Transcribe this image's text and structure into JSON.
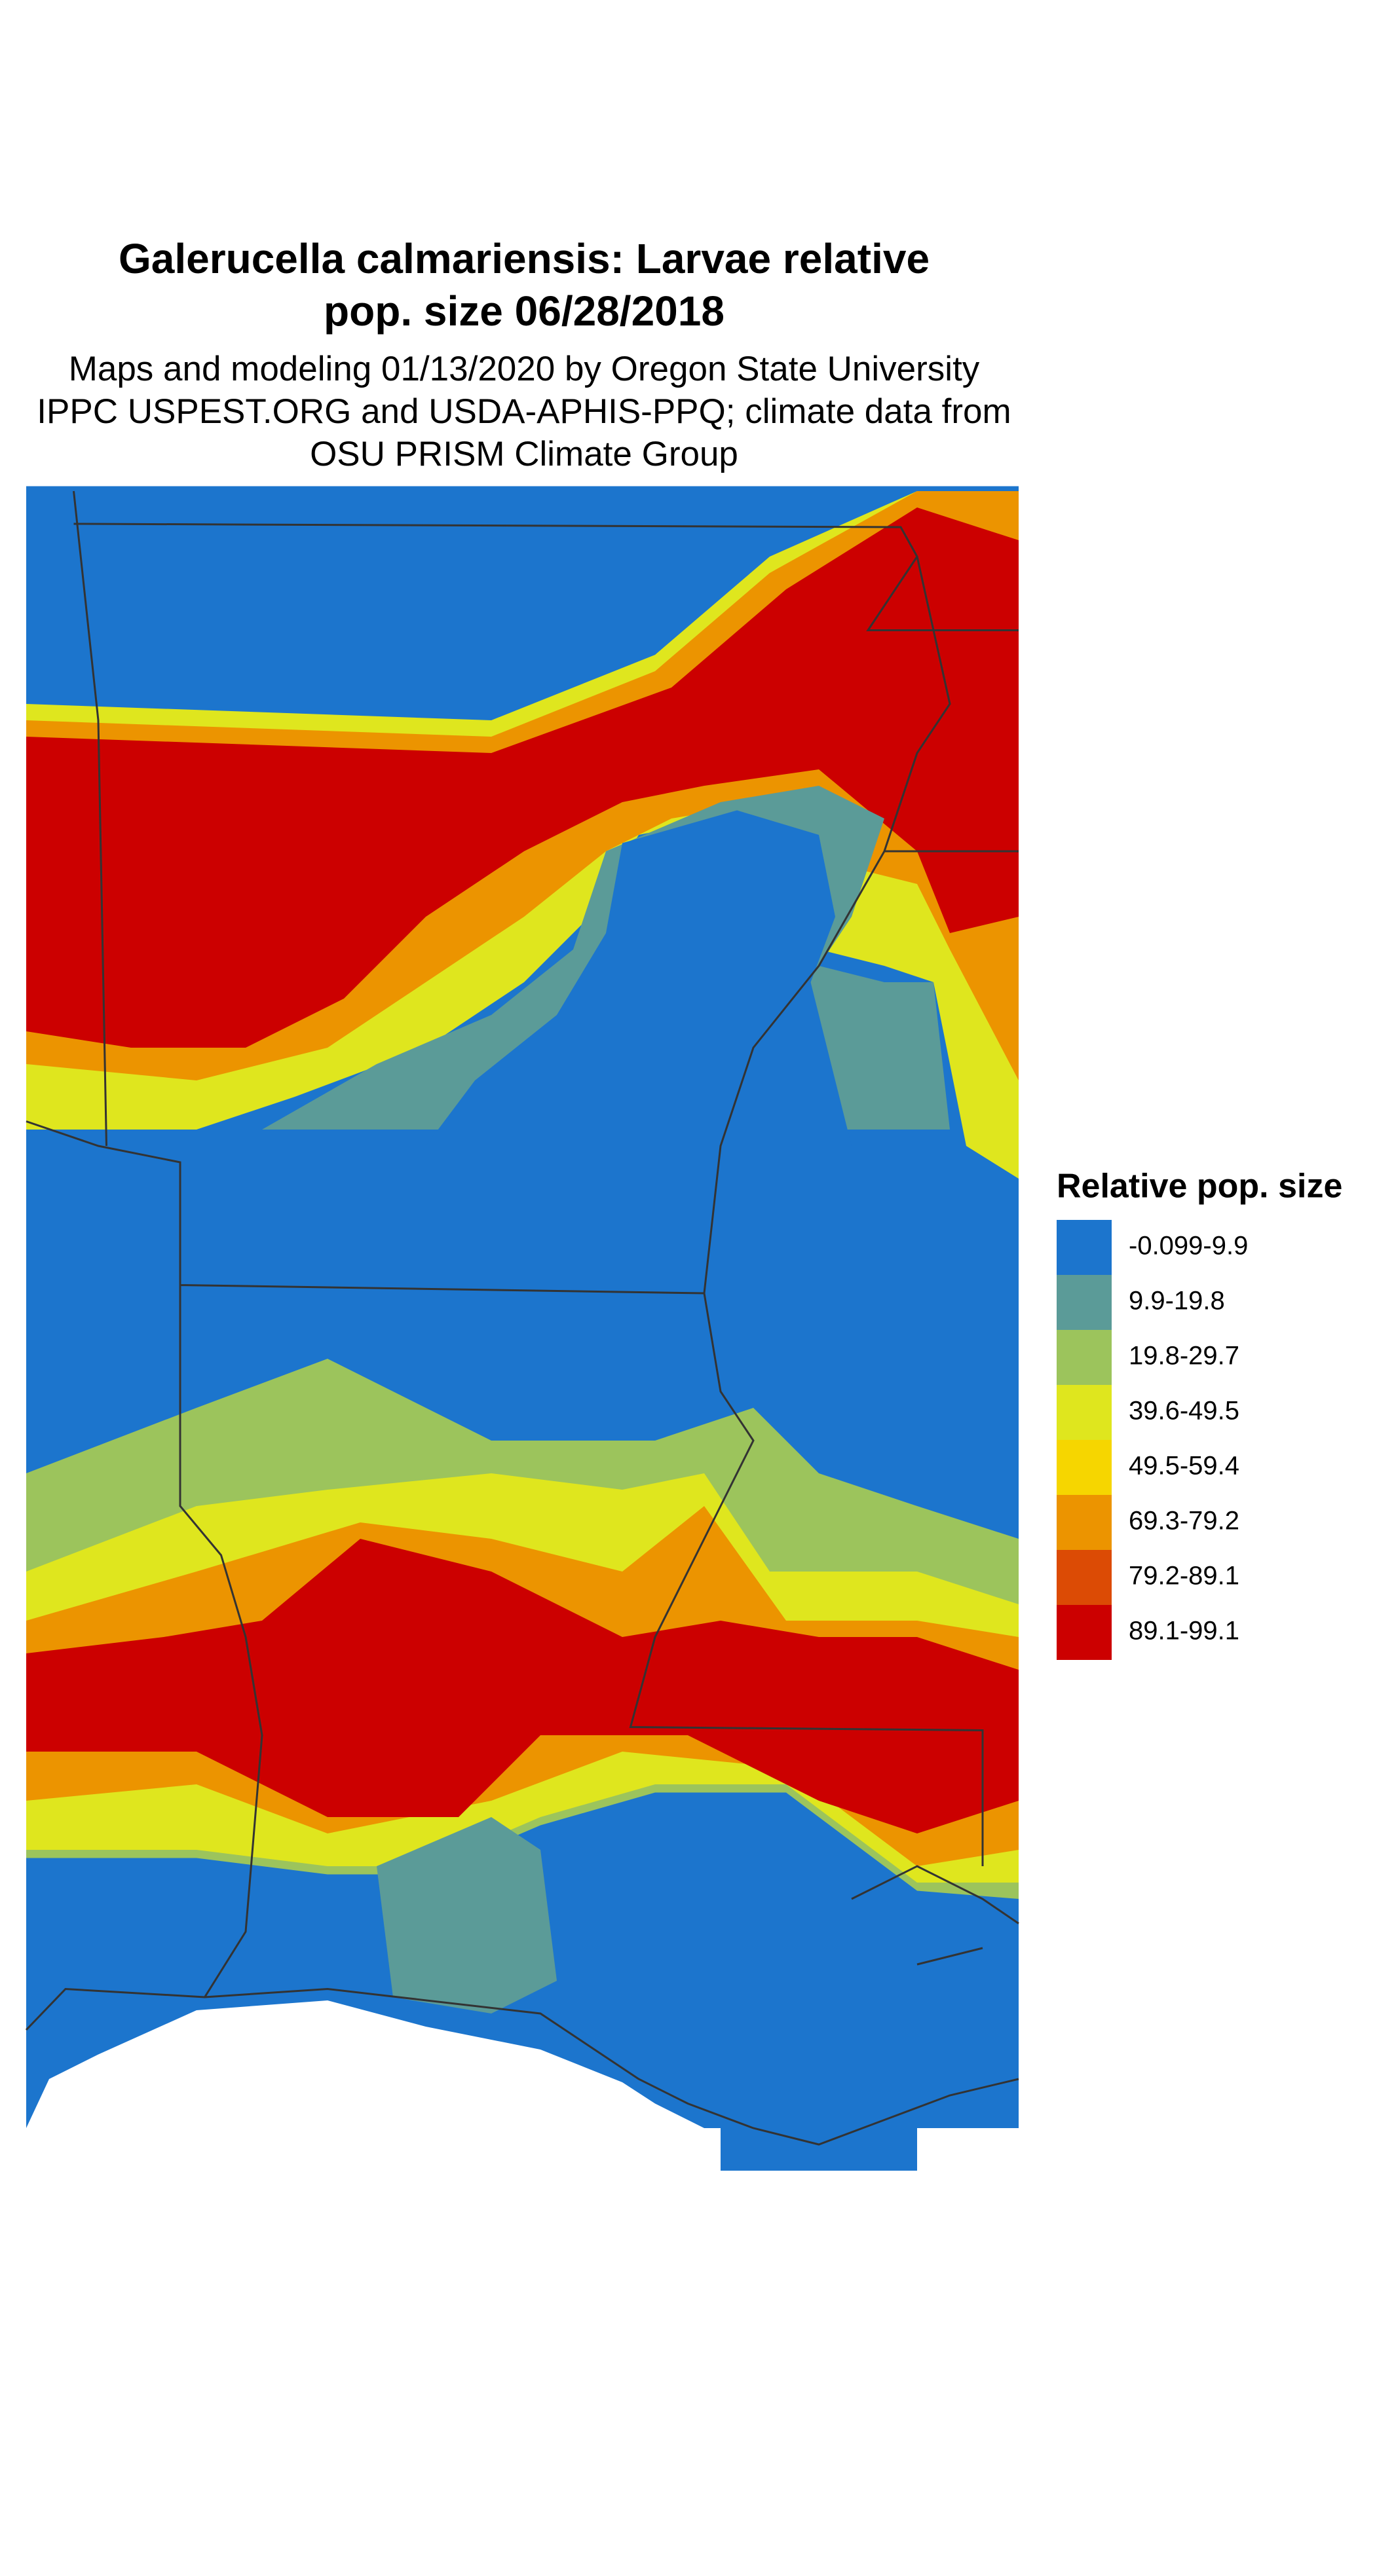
{
  "title": [
    "Galerucella calmariensis: Larvae relative",
    "pop. size 06/28/2018"
  ],
  "subtitle": [
    "Maps and modeling 01/13/2020 by Oregon State University",
    "IPPC USPEST.ORG and USDA-APHIS-PPQ; climate data from",
    "OSU PRISM Climate Group"
  ],
  "legend": {
    "title": "Relative pop. size",
    "items": [
      {
        "label": "-0.099-9.9",
        "color": "#1c75cd"
      },
      {
        "label": "9.9-19.8",
        "color": "#5b9b98"
      },
      {
        "label": "19.8-29.7",
        "color": "#9cc45c"
      },
      {
        "label": "39.6-49.5",
        "color": "#dfe61e"
      },
      {
        "label": "49.5-59.4",
        "color": "#f6d600"
      },
      {
        "label": "69.3-79.2",
        "color": "#ec9400"
      },
      {
        "label": "79.2-89.1",
        "color": "#dc4b05"
      },
      {
        "label": "89.1-99.1",
        "color": "#cc0000"
      }
    ]
  }
}
